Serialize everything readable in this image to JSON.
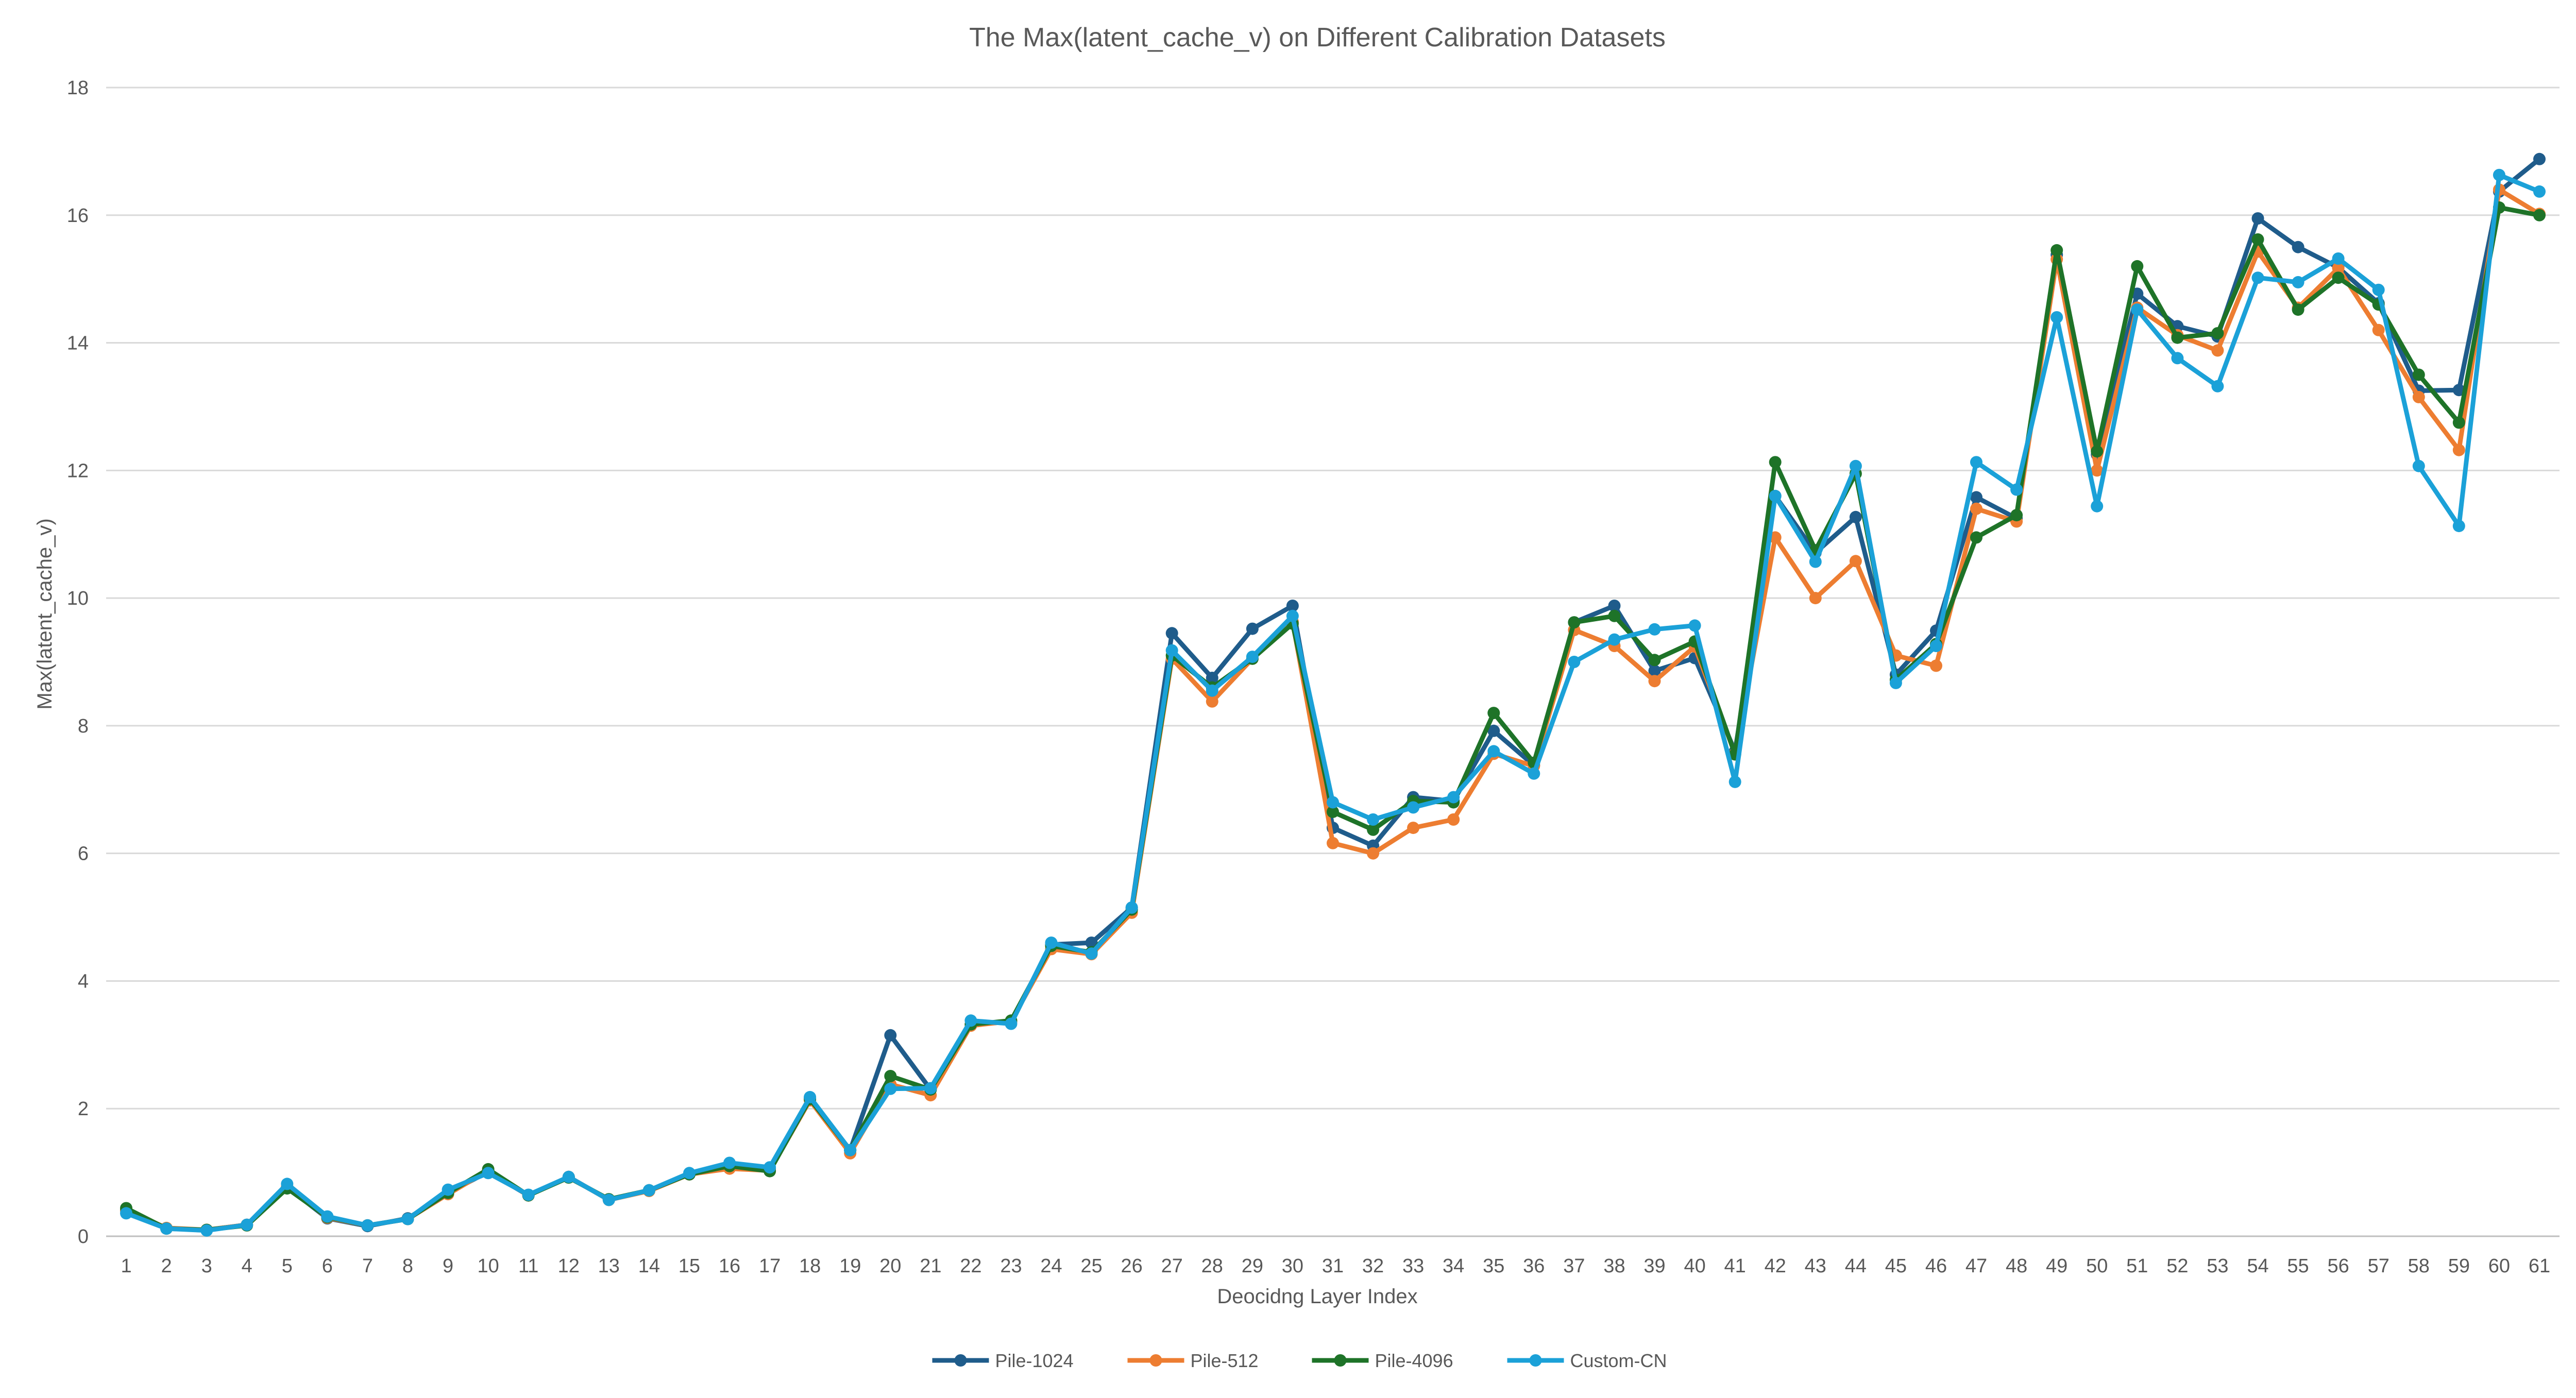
{
  "chart_data": {
    "type": "line",
    "title": "The Max(latent_cache_v) on Different Calibration Datasets",
    "xlabel": "Deocidng Layer Index",
    "ylabel": "Max(latent_cache_v)",
    "ylim": [
      0,
      18
    ],
    "yticks": [
      0,
      2,
      4,
      6,
      8,
      10,
      12,
      14,
      16,
      18
    ],
    "grid": "horizontal",
    "legend": "bottom",
    "categories": [
      "1",
      "2",
      "3",
      "4",
      "5",
      "6",
      "7",
      "8",
      "9",
      "10",
      "11",
      "12",
      "13",
      "14",
      "15",
      "16",
      "17",
      "18",
      "19",
      "20",
      "21",
      "22",
      "23",
      "24",
      "25",
      "26",
      "27",
      "28",
      "29",
      "30",
      "31",
      "32",
      "33",
      "34",
      "35",
      "36",
      "37",
      "38",
      "39",
      "40",
      "41",
      "42",
      "43",
      "44",
      "45",
      "46",
      "47",
      "48",
      "49",
      "50",
      "51",
      "52",
      "53",
      "54",
      "55",
      "56",
      "57",
      "58",
      "59",
      "60",
      "61"
    ],
    "series": [
      {
        "name": "Pile-1024",
        "color": "#1f5c8b",
        "values": [
          0.4,
          0.12,
          0.1,
          0.18,
          0.77,
          0.28,
          0.16,
          0.28,
          0.68,
          1.01,
          0.64,
          0.93,
          0.57,
          0.72,
          0.97,
          1.12,
          1.06,
          2.17,
          1.35,
          3.15,
          2.3,
          3.32,
          3.36,
          4.57,
          4.6,
          5.15,
          9.45,
          8.75,
          9.52,
          9.88,
          6.4,
          6.12,
          6.88,
          6.82,
          7.92,
          7.38,
          9.62,
          9.88,
          8.86,
          9.06,
          7.6,
          11.6,
          10.71,
          11.27,
          8.8,
          9.49,
          11.58,
          11.25,
          15.38,
          12.25,
          14.77,
          14.26,
          14.1,
          15.95,
          15.5,
          15.18,
          14.62,
          13.25,
          13.26,
          16.37,
          16.88
        ]
      },
      {
        "name": "Pile-512",
        "color": "#ed7d31",
        "values": [
          0.41,
          0.13,
          0.1,
          0.18,
          0.78,
          0.29,
          0.17,
          0.27,
          0.66,
          1.03,
          0.64,
          0.93,
          0.57,
          0.71,
          0.97,
          1.06,
          1.03,
          2.13,
          1.3,
          2.38,
          2.21,
          3.3,
          3.37,
          4.5,
          4.42,
          5.07,
          9.05,
          8.38,
          9.05,
          9.63,
          6.16,
          6.0,
          6.4,
          6.53,
          7.56,
          7.37,
          9.5,
          9.25,
          8.7,
          9.24,
          7.56,
          10.95,
          10.0,
          10.58,
          9.1,
          8.94,
          11.4,
          11.2,
          15.31,
          12.0,
          14.55,
          14.12,
          13.88,
          15.43,
          14.55,
          15.17,
          14.2,
          13.15,
          12.32,
          16.4,
          16.02
        ]
      },
      {
        "name": "Pile-4096",
        "color": "#1e7328",
        "values": [
          0.44,
          0.12,
          0.1,
          0.17,
          0.75,
          0.3,
          0.17,
          0.27,
          0.68,
          1.05,
          0.64,
          0.92,
          0.58,
          0.72,
          0.97,
          1.1,
          1.02,
          2.15,
          1.35,
          2.51,
          2.3,
          3.32,
          3.38,
          4.55,
          4.45,
          5.12,
          9.1,
          8.6,
          9.05,
          9.6,
          6.65,
          6.37,
          6.82,
          6.8,
          8.2,
          7.42,
          9.62,
          9.72,
          9.03,
          9.32,
          7.55,
          12.13,
          10.75,
          11.95,
          8.72,
          9.28,
          10.95,
          11.3,
          15.45,
          12.3,
          15.2,
          14.08,
          14.15,
          15.62,
          14.52,
          15.02,
          14.6,
          13.5,
          12.75,
          16.12,
          16.0
        ]
      },
      {
        "name": "Custom-CN",
        "color": "#1ba1d8",
        "values": [
          0.36,
          0.12,
          0.09,
          0.18,
          0.82,
          0.31,
          0.17,
          0.27,
          0.73,
          0.99,
          0.65,
          0.93,
          0.57,
          0.72,
          0.99,
          1.15,
          1.08,
          2.18,
          1.35,
          2.31,
          2.32,
          3.38,
          3.33,
          4.6,
          4.43,
          5.15,
          9.18,
          8.55,
          9.08,
          9.72,
          6.8,
          6.53,
          6.72,
          6.88,
          7.6,
          7.25,
          9.0,
          9.35,
          9.51,
          9.57,
          7.12,
          11.6,
          10.57,
          12.07,
          8.67,
          9.25,
          12.13,
          11.7,
          14.4,
          11.44,
          14.52,
          13.76,
          13.32,
          15.02,
          14.95,
          15.32,
          14.83,
          12.07,
          11.13,
          16.63,
          16.37
        ]
      }
    ]
  }
}
